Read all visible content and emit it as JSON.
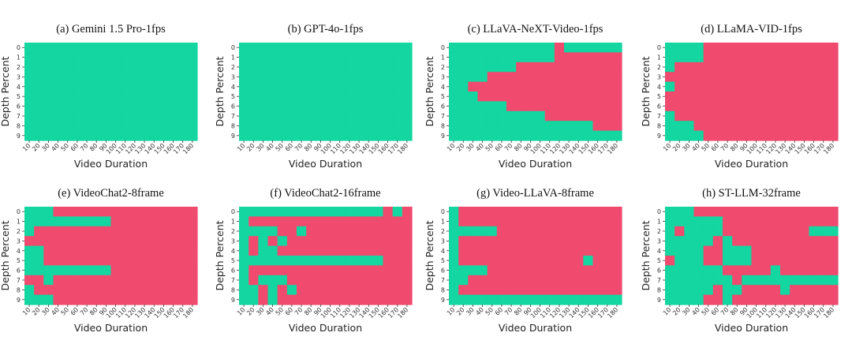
{
  "colors": {
    "pass": "#13d6a0",
    "fail": "#f04a6e"
  },
  "chart_data": [
    {
      "type": "heatmap",
      "title": "(a) Gemini 1.5 Pro-1fps",
      "xlabel": "Video Duration",
      "ylabel": "Depth Percent",
      "x": [
        "10",
        "20",
        "30",
        "40",
        "50",
        "60",
        "70",
        "80",
        "90",
        "100",
        "110",
        "120",
        "130",
        "140",
        "150",
        "160",
        "170",
        "180"
      ],
      "y": [
        "0",
        "1",
        "2",
        "3",
        "4",
        "5",
        "6",
        "7",
        "8",
        "9"
      ],
      "grid": [
        "111111111111111111",
        "111111111111111111",
        "111111111111111111",
        "111111111111111111",
        "111111111111111111",
        "111111111111111111",
        "111111111111111111",
        "111111111111111111",
        "111111111111111111",
        "111111111111111111"
      ]
    },
    {
      "type": "heatmap",
      "title": "(b) GPT-4o-1fps",
      "xlabel": "Video Duration",
      "ylabel": "Depth Percent",
      "x": [
        "10",
        "20",
        "30",
        "40",
        "50",
        "60",
        "70",
        "80",
        "90",
        "100",
        "110",
        "120",
        "130",
        "140",
        "150",
        "160",
        "170",
        "180"
      ],
      "y": [
        "0",
        "1",
        "2",
        "3",
        "4",
        "5",
        "6",
        "7",
        "8",
        "9"
      ],
      "grid": [
        "111111111111111111",
        "111111111111111111",
        "111111111111111111",
        "111111111111111111",
        "111111111111111111",
        "111111111111111111",
        "111111111111111111",
        "111111111111111111",
        "111111111111111111",
        "111111111111111111"
      ]
    },
    {
      "type": "heatmap",
      "title": "(c) LLaVA-NeXT-Video-1fps",
      "xlabel": "Video Duration",
      "ylabel": "Depth Percent",
      "x": [
        "10",
        "20",
        "30",
        "40",
        "50",
        "60",
        "70",
        "80",
        "90",
        "100",
        "110",
        "120",
        "130",
        "140",
        "150",
        "160",
        "170",
        "180"
      ],
      "y": [
        "0",
        "1",
        "2",
        "3",
        "4",
        "5",
        "6",
        "7",
        "8",
        "9"
      ],
      "grid": [
        "111111111110111111",
        "111111111110000000",
        "111111100000000000",
        "111100000000000000",
        "110000000000000000",
        "111000000000000000",
        "111111000000000000",
        "111111111100000000",
        "111111111111111000",
        "111111111111111111"
      ]
    },
    {
      "type": "heatmap",
      "title": "(d) LLaMA-VID-1fps",
      "xlabel": "Video Duration",
      "ylabel": "Depth Percent",
      "x": [
        "10",
        "20",
        "30",
        "40",
        "50",
        "60",
        "70",
        "80",
        "90",
        "100",
        "110",
        "120",
        "130",
        "140",
        "150",
        "160",
        "170",
        "180"
      ],
      "y": [
        "0",
        "1",
        "2",
        "3",
        "4",
        "5",
        "6",
        "7",
        "8",
        "9"
      ],
      "grid": [
        "111100000000000000",
        "111100000000000000",
        "100000000000000000",
        "000000000000000000",
        "100000000000000000",
        "000000000000000000",
        "000000000000000000",
        "100000000000000000",
        "111000000000000000",
        "111100000000000000"
      ]
    },
    {
      "type": "heatmap",
      "title": "(e) VideoChat2-8frame",
      "xlabel": "Video Duration",
      "ylabel": "Depth Percent",
      "x": [
        "10",
        "20",
        "30",
        "40",
        "50",
        "60",
        "70",
        "80",
        "90",
        "100",
        "110",
        "120",
        "130",
        "140",
        "150",
        "160",
        "170",
        "180"
      ],
      "y": [
        "0",
        "1",
        "2",
        "3",
        "4",
        "5",
        "6",
        "7",
        "8",
        "9"
      ],
      "grid": [
        "111000000000000000",
        "111111111000000000",
        "100000000000000000",
        "000000000000000000",
        "110000000000000000",
        "110000000000000000",
        "111111111000000000",
        "001000000000000000",
        "100000000000000000",
        "111000000000000000"
      ]
    },
    {
      "type": "heatmap",
      "title": "(f) VideoChat2-16frame",
      "xlabel": "Video Duration",
      "ylabel": "Depth Percent",
      "x": [
        "10",
        "20",
        "30",
        "40",
        "50",
        "60",
        "70",
        "80",
        "90",
        "100",
        "110",
        "120",
        "130",
        "140",
        "150",
        "160",
        "170",
        "180"
      ],
      "y": [
        "0",
        "1",
        "2",
        "3",
        "4",
        "5",
        "6",
        "7",
        "8",
        "9"
      ],
      "grid": [
        "111111111111111010",
        "100000000000000000",
        "111100100000000000",
        "101010000000000000",
        "101100000000000000",
        "111111111111111000",
        "100000000000000000",
        "101110000000000000",
        "110101000000000000",
        "110100000000000000"
      ]
    },
    {
      "type": "heatmap",
      "title": "(g) Video-LLaVA-8frame",
      "xlabel": "Video Duration",
      "ylabel": "Depth Percent",
      "x": [
        "10",
        "20",
        "30",
        "40",
        "50",
        "60",
        "70",
        "80",
        "90",
        "100",
        "110",
        "120",
        "130",
        "140",
        "150",
        "160",
        "170",
        "180"
      ],
      "y": [
        "0",
        "1",
        "2",
        "3",
        "4",
        "5",
        "6",
        "7",
        "8",
        "9"
      ],
      "grid": [
        "100000000000000000",
        "100000000000000000",
        "111110000000000000",
        "100000000000000000",
        "100000000000000000",
        "100000000000001000",
        "111100000000000000",
        "110000000000000000",
        "100000000000000000",
        "111111111111111111"
      ]
    },
    {
      "type": "heatmap",
      "title": "(h) ST-LLM-32frame",
      "xlabel": "Video Duration",
      "ylabel": "Depth Percent",
      "x": [
        "10",
        "20",
        "30",
        "40",
        "50",
        "60",
        "70",
        "80",
        "90",
        "100",
        "110",
        "120",
        "130",
        "140",
        "150",
        "160",
        "170",
        "180"
      ],
      "y": [
        "0",
        "1",
        "2",
        "3",
        "4",
        "5",
        "6",
        "7",
        "8",
        "9"
      ],
      "grid": [
        "111000000000000000",
        "111111000000000000",
        "101111000000000111",
        "111110100000000000",
        "111100111000000000",
        "011100111000000000",
        "111111000001000000",
        "111111101111111111",
        "111110110000100000",
        "111100100000000000"
      ]
    }
  ]
}
